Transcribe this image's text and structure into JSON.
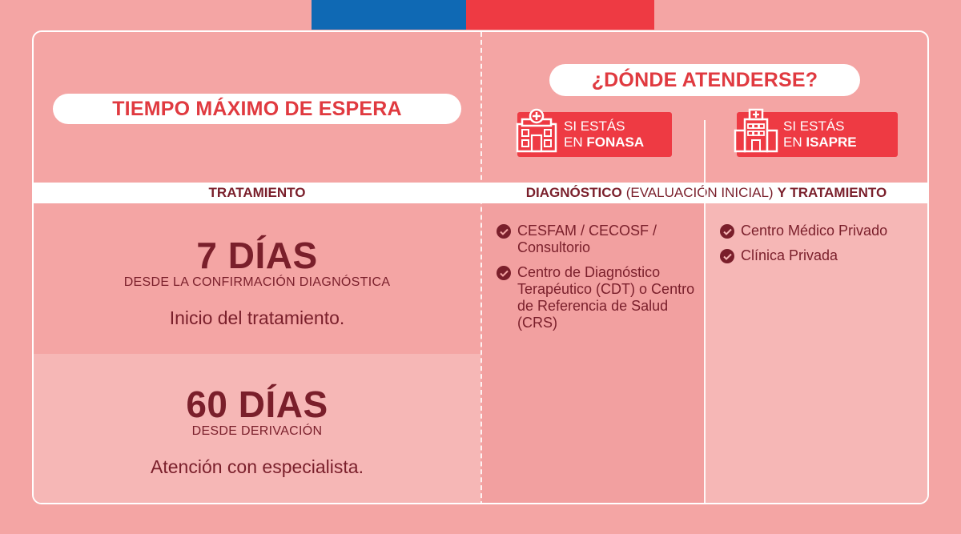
{
  "header": {
    "title": "TIEMPO MÁXIMO DE ESPERA",
    "where_title": "¿DÓNDE ATENDERSE?"
  },
  "badges": {
    "fonasa_line1": "SI ESTÁS",
    "fonasa_line2_prefix": "EN ",
    "fonasa_line2_bold": "FONASA",
    "isapre_line1": "SI ESTÁS",
    "isapre_line2_prefix": "EN ",
    "isapre_line2_bold": "ISAPRE"
  },
  "columns": {
    "left_header": "TRATAMIENTO",
    "right_header_bold1": "DIAGNÓSTICO",
    "right_header_regular": "(EVALUACIÓN INICIAL)",
    "right_header_bold2": "Y TRATAMIENTO"
  },
  "times": [
    {
      "value": "7 DÍAS",
      "basis": "DESDE LA CONFIRMACIÓN DIAGNÓSTICA",
      "description": "Inicio del tratamiento."
    },
    {
      "value": "60 DÍAS",
      "basis": "DESDE DERIVACIÓN",
      "description": "Atención con especialista."
    }
  ],
  "fonasa_places": [
    "CESFAM / CECOSF / Consultorio",
    "Centro de Diagnóstico Terapéutico (CDT) o Centro de Referencia de Salud (CRS)"
  ],
  "isapre_places": [
    "Centro Médico Privado",
    "Clínica Privada"
  ],
  "colors": {
    "background": "#f4a5a4",
    "accent_red": "#ee3a43",
    "flag_blue": "#0f69b4",
    "text_dark": "#7a1f2b"
  },
  "icons": [
    "building-icon",
    "hospital-icon",
    "check-circle-icon"
  ]
}
